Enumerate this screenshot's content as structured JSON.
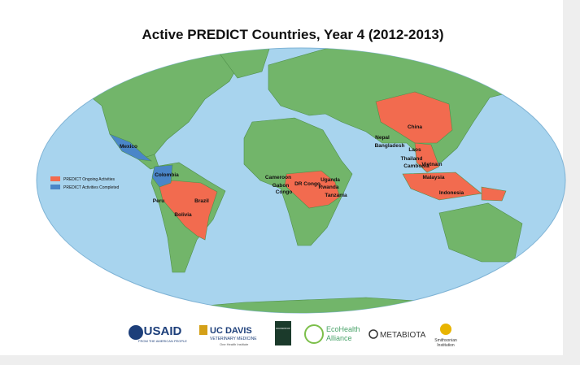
{
  "title": "Active PREDICT Countries, Year 4 (2012-2013)",
  "legend": [
    {
      "label": "PREDICT Ongoing Activities",
      "color": "#f26b4f",
      "countries": [
        "Peru",
        "Brazil",
        "Bolivia",
        "Cameroon",
        "Gabon",
        "Congo",
        "DR Congo",
        "Uganda",
        "Rwanda",
        "Tanzania",
        "China",
        "Nepal",
        "Bangladesh",
        "Laos",
        "Thailand",
        "Cambodia",
        "Vietnam",
        "Malaysia",
        "Indonesia"
      ]
    },
    {
      "label": "PREDICT Activities Completed",
      "color": "#4a86c8",
      "countries": [
        "Mexico",
        "Colombia"
      ]
    }
  ],
  "logos": {
    "usaid": {
      "name": "USAID",
      "tagline": "FROM THE AMERICAN PEOPLE"
    },
    "ucdavis": {
      "name": "UC DAVIS",
      "sub": "VETERINARY MEDICINE",
      "tagline": "One Health Institute"
    },
    "wcs": {
      "name": "WILDLIFE CONSERVATION SOCIETY"
    },
    "ecohealth": {
      "line1": "EcoHealth",
      "line2": "Alliance"
    },
    "metabiota": {
      "name": "METABIOTA"
    },
    "smithsonian": {
      "line1": "Smithsonian",
      "line2": "Institution"
    }
  }
}
